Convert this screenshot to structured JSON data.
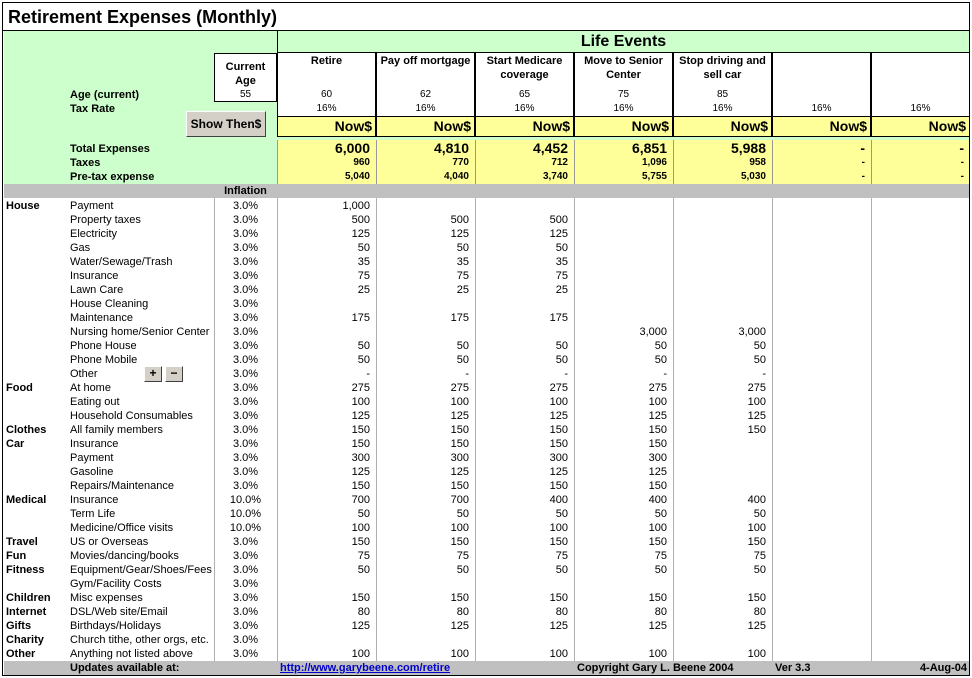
{
  "title": "Retirement Expenses (Monthly)",
  "life_events_title": "Life Events",
  "current_age_label": "Current Age",
  "current_age": "55",
  "age_label": "Age (current)",
  "tax_label": "Tax Rate",
  "show_button": "Show Then$",
  "total_label": "Total Expenses",
  "taxes_label": "Taxes",
  "pretax_label": "Pre-tax expense",
  "inflation_label": "Inflation",
  "plus_button": "+",
  "minus_button": "−",
  "events": [
    "Retire",
    "Pay off mortgage",
    "Start Medicare coverage",
    "Move to Senior Center",
    "Stop driving and sell car",
    null,
    null
  ],
  "ages": [
    "60",
    "62",
    "65",
    "75",
    "85",
    null,
    null
  ],
  "tax_rates": [
    "16%",
    "16%",
    "16%",
    "16%",
    "16%",
    "16%",
    "16%"
  ],
  "units": [
    "Now$",
    "Now$",
    "Now$",
    "Now$",
    "Now$",
    "Now$",
    "Now$"
  ],
  "totals": [
    "6,000",
    "4,810",
    "4,452",
    "6,851",
    "5,988",
    "-",
    "-"
  ],
  "taxes": [
    "960",
    "770",
    "712",
    "1,096",
    "958",
    "-",
    "-"
  ],
  "pretax": [
    "5,040",
    "4,040",
    "3,740",
    "5,755",
    "5,030",
    "-",
    "-"
  ],
  "rows": [
    {
      "category": "House",
      "item": "Payment",
      "inflation": "3.0%",
      "values": [
        "1,000",
        null,
        null,
        null,
        null,
        null,
        null
      ]
    },
    {
      "item": "Property taxes",
      "inflation": "3.0%",
      "values": [
        "500",
        "500",
        "500",
        null,
        null,
        null,
        null
      ]
    },
    {
      "item": "Electricity",
      "inflation": "3.0%",
      "values": [
        "125",
        "125",
        "125",
        null,
        null,
        null,
        null
      ]
    },
    {
      "item": "Gas",
      "inflation": "3.0%",
      "values": [
        "50",
        "50",
        "50",
        null,
        null,
        null,
        null
      ]
    },
    {
      "item": "Water/Sewage/Trash",
      "inflation": "3.0%",
      "values": [
        "35",
        "35",
        "35",
        null,
        null,
        null,
        null
      ]
    },
    {
      "item": "Insurance",
      "inflation": "3.0%",
      "values": [
        "75",
        "75",
        "75",
        null,
        null,
        null,
        null
      ]
    },
    {
      "item": "Lawn Care",
      "inflation": "3.0%",
      "values": [
        "25",
        "25",
        "25",
        null,
        null,
        null,
        null
      ]
    },
    {
      "item": "House Cleaning",
      "inflation": "3.0%",
      "values": [
        null,
        null,
        null,
        null,
        null,
        null,
        null
      ]
    },
    {
      "item": "Maintenance",
      "inflation": "3.0%",
      "values": [
        "175",
        "175",
        "175",
        null,
        null,
        null,
        null
      ]
    },
    {
      "item": "Nursing home/Senior Center",
      "inflation": "3.0%",
      "values": [
        null,
        null,
        null,
        "3,000",
        "3,000",
        null,
        null
      ]
    },
    {
      "item": "Phone House",
      "inflation": "3.0%",
      "values": [
        "50",
        "50",
        "50",
        "50",
        "50",
        null,
        null
      ]
    },
    {
      "item": "Phone Mobile",
      "inflation": "3.0%",
      "values": [
        "50",
        "50",
        "50",
        "50",
        "50",
        null,
        null
      ]
    },
    {
      "item": "Other",
      "inflation": "3.0%",
      "values": [
        "-",
        "-",
        "-",
        "-",
        "-",
        null,
        null
      ]
    },
    {
      "category": "Food",
      "item": "At home",
      "inflation": "3.0%",
      "values": [
        "275",
        "275",
        "275",
        "275",
        "275",
        null,
        null
      ]
    },
    {
      "item": "Eating out",
      "inflation": "3.0%",
      "values": [
        "100",
        "100",
        "100",
        "100",
        "100",
        null,
        null
      ]
    },
    {
      "item": "Household Consumables",
      "inflation": "3.0%",
      "values": [
        "125",
        "125",
        "125",
        "125",
        "125",
        null,
        null
      ]
    },
    {
      "category": "Clothes",
      "item": "All family members",
      "inflation": "3.0%",
      "values": [
        "150",
        "150",
        "150",
        "150",
        "150",
        null,
        null
      ]
    },
    {
      "category": "Car",
      "item": "Insurance",
      "inflation": "3.0%",
      "values": [
        "150",
        "150",
        "150",
        "150",
        null,
        null,
        null
      ]
    },
    {
      "item": "Payment",
      "inflation": "3.0%",
      "values": [
        "300",
        "300",
        "300",
        "300",
        null,
        null,
        null
      ]
    },
    {
      "item": "Gasoline",
      "inflation": "3.0%",
      "values": [
        "125",
        "125",
        "125",
        "125",
        null,
        null,
        null
      ]
    },
    {
      "item": "Repairs/Maintenance",
      "inflation": "3.0%",
      "values": [
        "150",
        "150",
        "150",
        "150",
        null,
        null,
        null
      ]
    },
    {
      "category": "Medical",
      "item": "Insurance",
      "inflation": "10.0%",
      "values": [
        "700",
        "700",
        "400",
        "400",
        "400",
        null,
        null
      ]
    },
    {
      "item": "Term Life",
      "inflation": "10.0%",
      "values": [
        "50",
        "50",
        "50",
        "50",
        "50",
        null,
        null
      ]
    },
    {
      "item": "Medicine/Office visits",
      "inflation": "10.0%",
      "values": [
        "100",
        "100",
        "100",
        "100",
        "100",
        null,
        null
      ]
    },
    {
      "category": "Travel",
      "item": "US or Overseas",
      "inflation": "3.0%",
      "values": [
        "150",
        "150",
        "150",
        "150",
        "150",
        null,
        null
      ]
    },
    {
      "category": "Fun",
      "item": "Movies/dancing/books",
      "inflation": "3.0%",
      "values": [
        "75",
        "75",
        "75",
        "75",
        "75",
        null,
        null
      ]
    },
    {
      "category": "Fitness",
      "item": "Equipment/Gear/Shoes/Fees",
      "inflation": "3.0%",
      "values": [
        "50",
        "50",
        "50",
        "50",
        "50",
        null,
        null
      ]
    },
    {
      "item": "Gym/Facility Costs",
      "inflation": "3.0%",
      "values": [
        null,
        null,
        null,
        null,
        null,
        null,
        null
      ]
    },
    {
      "category": "Children",
      "item": "Misc expenses",
      "inflation": "3.0%",
      "values": [
        "150",
        "150",
        "150",
        "150",
        "150",
        null,
        null
      ]
    },
    {
      "category": "Internet",
      "item": "DSL/Web site/Email",
      "inflation": "3.0%",
      "values": [
        "80",
        "80",
        "80",
        "80",
        "80",
        null,
        null
      ]
    },
    {
      "category": "Gifts",
      "item": "Birthdays/Holidays",
      "inflation": "3.0%",
      "values": [
        "125",
        "125",
        "125",
        "125",
        "125",
        null,
        null
      ]
    },
    {
      "category": "Charity",
      "item": "Church tithe, other orgs, etc.",
      "inflation": "3.0%",
      "values": [
        null,
        null,
        null,
        null,
        null,
        null,
        null
      ]
    },
    {
      "category": "Other",
      "item": "Anything not listed above",
      "inflation": "3.0%",
      "values": [
        "100",
        "100",
        "100",
        "100",
        "100",
        null,
        null
      ]
    }
  ],
  "footer": {
    "updates": "Updates available at:",
    "link": "http://www.garybeene.com/retire",
    "copyright": "Copyright Gary L. Beene 2004",
    "version": "Ver 3.3",
    "date": "4-Aug-04"
  }
}
